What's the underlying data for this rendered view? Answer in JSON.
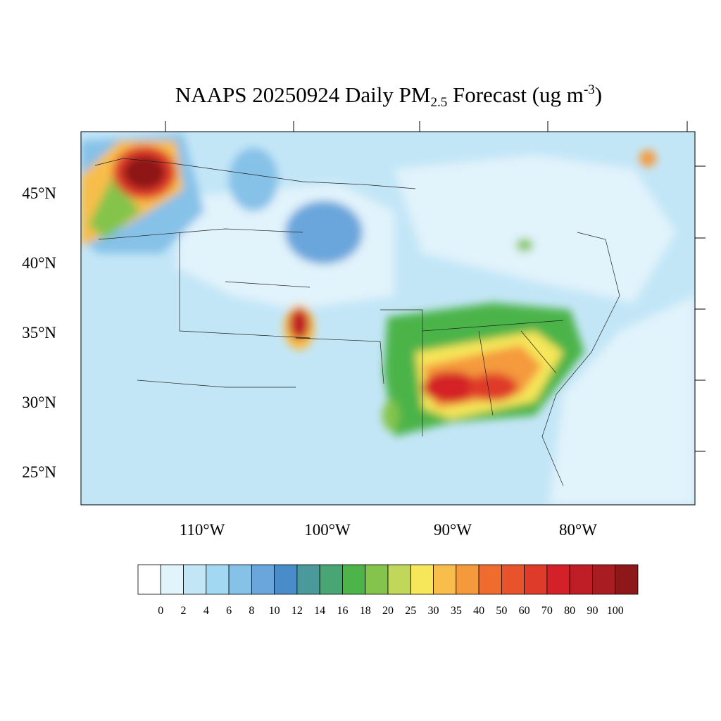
{
  "map": {
    "title_parts": [
      "NAAPS 20250924 Daily PM",
      "2.5",
      " Forecast (ug m",
      "-3",
      ")"
    ],
    "lat_labels": [
      "45°N",
      "40°N",
      "35°N",
      "30°N",
      "25°N"
    ],
    "lon_labels": [
      "110°W",
      "100°W",
      "90°W",
      "80°W"
    ],
    "colorbar": {
      "colors": [
        "#ffffff",
        "#e1f3fb",
        "#c3e6f7",
        "#a3d8f3",
        "#86c1e8",
        "#6aa6dc",
        "#4a8cc9",
        "#4a9a9c",
        "#48a675",
        "#4cb448",
        "#84c44c",
        "#c0d75a",
        "#f6e65a",
        "#f8bd4a",
        "#f59a3c",
        "#f06c2e",
        "#e8532c",
        "#df3b2a",
        "#d42028",
        "#bf1e26",
        "#a81c22",
        "#8e1719"
      ],
      "labels": [
        0,
        2,
        4,
        6,
        8,
        10,
        12,
        14,
        16,
        18,
        20,
        25,
        30,
        35,
        40,
        50,
        60,
        70,
        80,
        90,
        100
      ]
    }
  }
}
